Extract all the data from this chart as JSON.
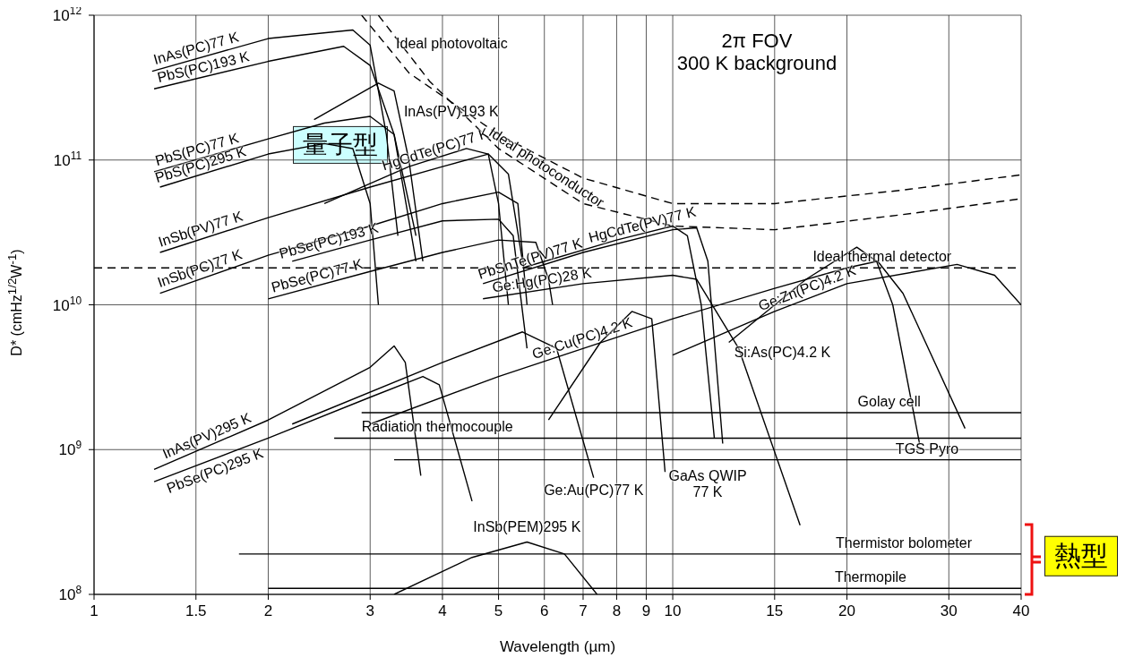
{
  "chart_data": {
    "type": "line",
    "xlabel": "Wavelength (µm)",
    "ylabel": "D* (cmHz$^{1/2}$W$^{-1}$)",
    "log": "xy",
    "grid": true,
    "marker": "none",
    "line_style": "solid",
    "xlim": [
      1,
      40
    ],
    "xticks": [
      1,
      1.5,
      2,
      3,
      4,
      5,
      6,
      7,
      8,
      9,
      10,
      15,
      20,
      30,
      40
    ],
    "ylim": [
      100000000.0,
      1000000000000.0
    ],
    "yticks": [
      {
        "value": 100000000.0,
        "label": "10$^{8}$"
      },
      {
        "value": 1000000000.0,
        "label": "10$^{9}$"
      },
      {
        "value": 10000000000.0,
        "label": "10$^{10}$"
      },
      {
        "value": 100000000000.0,
        "label": "10$^{11}$"
      },
      {
        "value": 1000000000000.0,
        "label": "10$^{12}$"
      }
    ],
    "annotations": [
      "2π FOV\n300 K background",
      "量子型",
      "熱型"
    ],
    "series": [
      {
        "name": "InAs(PC)77 K",
        "color": "#000000",
        "x": [
          1.26,
          2,
          2.8,
          3.0,
          3.2,
          3.35
        ],
        "values": [
          410000000000.0,
          690000000000.0,
          790000000000.0,
          620000000000.0,
          150000000000.0,
          30000000000.0
        ]
      },
      {
        "name": "PbS(PC)193 K",
        "color": "#000000",
        "x": [
          1.27,
          2,
          2.7,
          3.0,
          3.3,
          3.6
        ],
        "values": [
          310000000000.0,
          480000000000.0,
          610000000000.0,
          450000000000.0,
          150000000000.0,
          30000000000.0
        ]
      },
      {
        "name": "InAs(PV)193 K",
        "color": "#000000",
        "x": [
          2.4,
          3.1,
          3.3,
          3.5,
          3.7
        ],
        "values": [
          190000000000.0,
          340000000000.0,
          300000000000.0,
          100000000000.0,
          20000000000.0
        ]
      },
      {
        "name": "PbS(PC)77 K",
        "color": "#000000",
        "x": [
          1.27,
          2,
          2.5,
          3.0,
          3.3,
          3.6
        ],
        "values": [
          83000000000.0,
          140000000000.0,
          180000000000.0,
          200000000000.0,
          150000000000.0,
          20000000000.0
        ]
      },
      {
        "name": "PbS(PC)295 K",
        "color": "#000000",
        "x": [
          1.3,
          2,
          2.5,
          2.8,
          3.0,
          3.1
        ],
        "values": [
          65000000000.0,
          110000000000.0,
          130000000000.0,
          120000000000.0,
          50000000000.0,
          10000000000.0
        ]
      },
      {
        "name": "InSb(PV)77 K",
        "color": "#000000",
        "x": [
          1.3,
          2,
          3,
          4,
          4.8,
          5.2,
          5.5
        ],
        "values": [
          23000000000.0,
          40000000000.0,
          65000000000.0,
          90000000000.0,
          110000000000.0,
          80000000000.0,
          20000000000.0
        ]
      },
      {
        "name": "HgCdTe(PC)77 K",
        "color": "#000000",
        "x": [
          2.5,
          3.5,
          4.4,
          4.8,
          5.0,
          5.2
        ],
        "values": [
          50000000000.0,
          90000000000.0,
          120000000000.0,
          110000000000.0,
          50000000000.0,
          10000000000.0
        ]
      },
      {
        "name": "InSb(PC)77 K",
        "color": "#000000",
        "x": [
          1.3,
          2,
          3,
          4,
          5,
          5.4,
          5.6
        ],
        "values": [
          12000000000.0,
          22000000000.0,
          35000000000.0,
          50000000000.0,
          60000000000.0,
          50000000000.0,
          10000000000.0
        ]
      },
      {
        "name": "PbSe(PC)193 K",
        "color": "#000000",
        "x": [
          2.2,
          3,
          4,
          5,
          5.3,
          5.6
        ],
        "values": [
          20000000000.0,
          28000000000.0,
          38000000000.0,
          39000000000.0,
          30000000000.0,
          5000000000.0
        ]
      },
      {
        "name": "PbSe(PC)77 K",
        "color": "#000000",
        "x": [
          2,
          3,
          4,
          5,
          5.8,
          6.1,
          6.2
        ],
        "values": [
          11000000000.0,
          17000000000.0,
          23000000000.0,
          28000000000.0,
          27000000000.0,
          15000000000.0,
          10000000000.0
        ]
      },
      {
        "name": "InAs(PV)295 K",
        "color": "#000000",
        "x": [
          1.27,
          2,
          3,
          3.3,
          3.45,
          3.67
        ],
        "values": [
          730000000.0,
          1600000000.0,
          3700000000.0,
          5200000000.0,
          4000000000.0,
          660000000.0
        ]
      },
      {
        "name": "PbSe(PC)295 K",
        "color": "#000000",
        "x": [
          1.27,
          2,
          3,
          3.7,
          3.95,
          4.5
        ],
        "values": [
          600000000.0,
          1200000000.0,
          2300000000.0,
          3200000000.0,
          2800000000.0,
          440000000.0
        ]
      },
      {
        "name": "InSb(PEM)295 K",
        "color": "#000000",
        "x": [
          3.3,
          4.5,
          5.6,
          6.5,
          7.4
        ],
        "values": [
          100000000.0,
          180000000.0,
          230000000.0,
          190000000.0,
          100000000.0
        ]
      },
      {
        "name": "Ge:Au(PC)77 K",
        "color": "#000000",
        "x": [
          2.2,
          4,
          5.5,
          6.3,
          7.3
        ],
        "values": [
          1500000000.0,
          4000000000.0,
          6500000000.0,
          5000000000.0,
          640000000.0
        ]
      },
      {
        "name": "GaAs QWIP\n77 K",
        "color": "#000000",
        "x": [
          6.1,
          7.5,
          8.5,
          9.2,
          9.7
        ],
        "values": [
          1600000000.0,
          5500000000.0,
          9000000000.0,
          8000000000.0,
          700000000.0
        ]
      },
      {
        "name": "Ge:Cu(PC)4.2 K",
        "color": "#000000",
        "x": [
          3.0,
          5,
          10,
          15,
          20,
          22.6,
          25,
          32
        ],
        "values": [
          1500000000.0,
          3200000000.0,
          8000000000.0,
          13000000000.0,
          18000000000.0,
          20000000000.0,
          12000000000.0,
          1400000000.0
        ]
      },
      {
        "name": "Ge:Hg(PC)28 K",
        "color": "#000000",
        "x": [
          4.7,
          7,
          10,
          11,
          13,
          16.6
        ],
        "values": [
          11000000000.0,
          14000000000.0,
          16000000000.0,
          15000000000.0,
          5000000000.0,
          300000000.0
        ]
      },
      {
        "name": "PbSnTe(PV)77 K",
        "color": "#000000",
        "x": [
          4.7,
          7,
          10,
          11,
          11.5,
          12.2
        ],
        "values": [
          14000000000.0,
          23000000000.0,
          33000000000.0,
          34000000000.0,
          20000000000.0,
          1100000000.0
        ]
      },
      {
        "name": "HgCdTe(PV)77 K",
        "color": "#000000",
        "x": [
          5.5,
          8,
          10,
          10.6,
          11.2,
          11.8
        ],
        "values": [
          18000000000.0,
          28000000000.0,
          35000000000.0,
          30000000000.0,
          10000000000.0,
          1200000000.0
        ]
      },
      {
        "name": "Ge:Zn(PC)4.2 K",
        "color": "#000000",
        "x": [
          10,
          15,
          20,
          31,
          36,
          40
        ],
        "values": [
          4500000000.0,
          9000000000.0,
          14000000000.0,
          19000000000.0,
          16000000000.0,
          10000000000.0
        ]
      },
      {
        "name": "Si:As(PC)4.2 K",
        "color": "#000000",
        "x": [
          12.5,
          17,
          20.8,
          22.5,
          24,
          26.7
        ],
        "values": [
          5500000000.0,
          15000000000.0,
          25000000000.0,
          20000000000.0,
          10000000000.0,
          1100000000.0
        ]
      },
      {
        "name": "Golay cell",
        "color": "#000000",
        "x": [
          2.9,
          40
        ],
        "values": [
          1800000000.0,
          1800000000.0
        ]
      },
      {
        "name": "Radiation thermocouple",
        "color": "#000000",
        "x": [
          2.6,
          40
        ],
        "values": [
          1200000000.0,
          1200000000.0
        ]
      },
      {
        "name": "TGS Pyro",
        "color": "#000000",
        "x": [
          3.3,
          40
        ],
        "values": [
          850000000.0,
          850000000.0
        ]
      },
      {
        "name": "Thermistor bolometer",
        "color": "#000000",
        "x": [
          1.78,
          40
        ],
        "values": [
          190000000.0,
          190000000.0
        ]
      },
      {
        "name": "Thermopile",
        "color": "#000000",
        "x": [
          2,
          40
        ],
        "values": [
          110000000.0,
          110000000.0
        ]
      },
      {
        "name": "Ideal photovoltaic",
        "color": "#000000",
        "line_style": "dashed",
        "x": [
          2.9,
          3.5,
          5,
          7,
          10,
          15,
          25,
          40
        ],
        "values": [
          1000000000000.0,
          400000000000.0,
          150000000000.0,
          75000000000.0,
          50000000000.0,
          50000000000.0,
          62000000000.0,
          79000000000.0
        ]
      },
      {
        "name": "Ideal photoconductor",
        "color": "#000000",
        "line_style": "dashed",
        "x": [
          3.1,
          3.8,
          5,
          7,
          10,
          15,
          25,
          40
        ],
        "values": [
          1000000000000.0,
          350000000000.0,
          120000000000.0,
          50000000000.0,
          35000000000.0,
          33000000000.0,
          42000000000.0,
          54000000000.0
        ]
      },
      {
        "name": "Ideal thermal detector",
        "color": "#000000",
        "line_style": "dashed",
        "x": [
          1,
          40
        ],
        "values": [
          18000000000.0,
          18000000000.0
        ]
      }
    ]
  }
}
